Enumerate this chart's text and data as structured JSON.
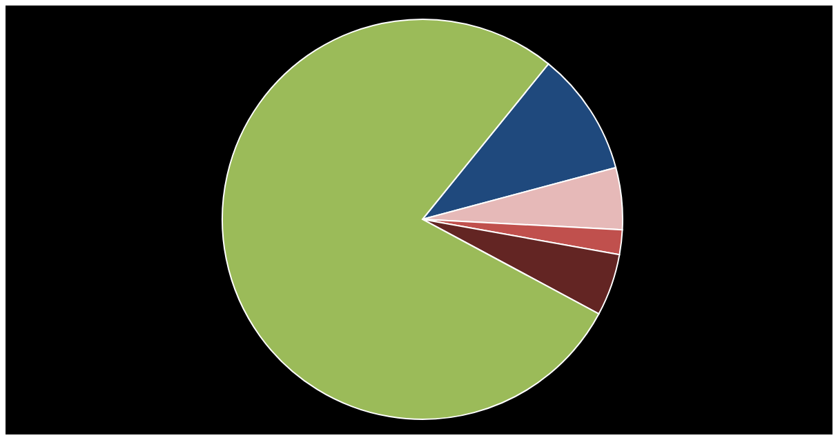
{
  "chart_data": {
    "type": "pie",
    "categories": [
      null,
      null,
      null,
      null,
      null
    ],
    "values": [
      10,
      5,
      2,
      5,
      78
    ],
    "colors": [
      "#1f497d",
      "#e6b9b8",
      "#c0504d",
      "#632523",
      "#9bbb59"
    ],
    "legend": false
  }
}
